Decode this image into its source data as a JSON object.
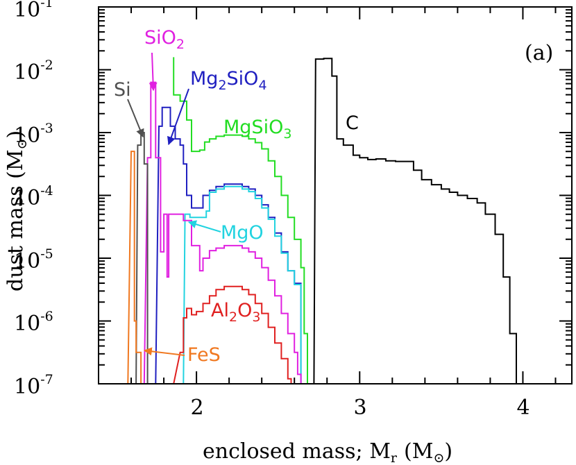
{
  "chart_data": {
    "type": "line",
    "panel_label": "(a)",
    "xlabel": "enclosed mass; M",
    "xlabel_sub": "r",
    "xlabel_unit": "(M",
    "xlabel_unit_close": ")",
    "ylabel": "dust mass (M",
    "ylabel_close": ")",
    "xlim": [
      1.4,
      4.3
    ],
    "ylim_log10": [
      -7,
      -1
    ],
    "yscale": "log",
    "x_ticks": [
      {
        "value": 2,
        "label": "2"
      },
      {
        "value": 3,
        "label": "3"
      },
      {
        "value": 4,
        "label": "4"
      }
    ],
    "y_ticks": [
      {
        "exp": -1,
        "base": "10",
        "exponent": "-1"
      },
      {
        "exp": -2,
        "base": "10",
        "exponent": "-2"
      },
      {
        "exp": -3,
        "base": "10",
        "exponent": "-3"
      },
      {
        "exp": -4,
        "base": "10",
        "exponent": "-4"
      },
      {
        "exp": -5,
        "base": "10",
        "exponent": "-5"
      },
      {
        "exp": -6,
        "base": "10",
        "exponent": "-6"
      },
      {
        "exp": -7,
        "base": "10",
        "exponent": "-7"
      }
    ],
    "series": [
      {
        "name": "C",
        "color": "#000000",
        "points": [
          [
            2.72,
            -7
          ],
          [
            2.73,
            -1.83
          ],
          [
            2.78,
            -1.83
          ],
          [
            2.78,
            -1.82
          ],
          [
            2.83,
            -1.82
          ],
          [
            2.83,
            -2.1
          ],
          [
            2.86,
            -2.1
          ],
          [
            2.86,
            -3.1
          ],
          [
            2.9,
            -3.1
          ],
          [
            2.9,
            -3.2
          ],
          [
            2.96,
            -3.2
          ],
          [
            2.96,
            -3.36
          ],
          [
            3.0,
            -3.36
          ],
          [
            3.0,
            -3.4
          ],
          [
            3.05,
            -3.4
          ],
          [
            3.05,
            -3.43
          ],
          [
            3.1,
            -3.43
          ],
          [
            3.1,
            -3.42
          ],
          [
            3.16,
            -3.42
          ],
          [
            3.16,
            -3.45
          ],
          [
            3.22,
            -3.45
          ],
          [
            3.22,
            -3.46
          ],
          [
            3.33,
            -3.46
          ],
          [
            3.33,
            -3.6
          ],
          [
            3.38,
            -3.6
          ],
          [
            3.38,
            -3.75
          ],
          [
            3.44,
            -3.75
          ],
          [
            3.44,
            -3.83
          ],
          [
            3.5,
            -3.83
          ],
          [
            3.5,
            -3.9
          ],
          [
            3.55,
            -3.9
          ],
          [
            3.55,
            -3.95
          ],
          [
            3.6,
            -3.95
          ],
          [
            3.6,
            -4.0
          ],
          [
            3.66,
            -4.0
          ],
          [
            3.66,
            -4.05
          ],
          [
            3.72,
            -4.05
          ],
          [
            3.72,
            -4.12
          ],
          [
            3.77,
            -4.12
          ],
          [
            3.77,
            -4.3
          ],
          [
            3.83,
            -4.3
          ],
          [
            3.83,
            -4.62
          ],
          [
            3.88,
            -4.62
          ],
          [
            3.88,
            -5.3
          ],
          [
            3.92,
            -5.3
          ],
          [
            3.92,
            -6.2
          ],
          [
            3.96,
            -6.2
          ],
          [
            3.96,
            -7
          ]
        ]
      },
      {
        "name": "MgSiO3",
        "label_base": "MgSiO",
        "label_sub": "3",
        "color": "#22dd22",
        "points": [
          [
            1.86,
            -1.8
          ],
          [
            1.86,
            -2.4
          ],
          [
            1.9,
            -2.4
          ],
          [
            1.9,
            -2.5
          ],
          [
            1.94,
            -2.5
          ],
          [
            1.94,
            -2.8
          ],
          [
            1.97,
            -2.8
          ],
          [
            1.97,
            -3.3
          ],
          [
            2.02,
            -3.3
          ],
          [
            2.02,
            -3.28
          ],
          [
            2.05,
            -3.28
          ],
          [
            2.05,
            -3.15
          ],
          [
            2.08,
            -3.15
          ],
          [
            2.08,
            -3.1
          ],
          [
            2.12,
            -3.1
          ],
          [
            2.12,
            -3.06
          ],
          [
            2.17,
            -3.06
          ],
          [
            2.17,
            -3.04
          ],
          [
            2.28,
            -3.04
          ],
          [
            2.28,
            -3.06
          ],
          [
            2.32,
            -3.06
          ],
          [
            2.32,
            -3.1
          ],
          [
            2.36,
            -3.1
          ],
          [
            2.36,
            -3.16
          ],
          [
            2.4,
            -3.16
          ],
          [
            2.4,
            -3.26
          ],
          [
            2.44,
            -3.26
          ],
          [
            2.44,
            -3.45
          ],
          [
            2.48,
            -3.45
          ],
          [
            2.48,
            -3.7
          ],
          [
            2.52,
            -3.7
          ],
          [
            2.52,
            -4.0
          ],
          [
            2.56,
            -4.0
          ],
          [
            2.56,
            -4.35
          ],
          [
            2.6,
            -4.35
          ],
          [
            2.6,
            -4.7
          ],
          [
            2.64,
            -4.7
          ],
          [
            2.64,
            -5.15
          ],
          [
            2.66,
            -5.15
          ],
          [
            2.66,
            -6.2
          ],
          [
            2.68,
            -6.2
          ],
          [
            2.68,
            -7
          ]
        ]
      },
      {
        "name": "Mg2SiO4",
        "label_base": "Mg",
        "label_sub1": "2",
        "label_mid": "SiO",
        "label_sub2": "4",
        "color": "#1f1fc0",
        "points": [
          [
            1.75,
            -7
          ],
          [
            1.77,
            -2.9
          ],
          [
            1.79,
            -2.9
          ],
          [
            1.79,
            -2.6
          ],
          [
            1.84,
            -2.6
          ],
          [
            1.84,
            -2.9
          ],
          [
            1.87,
            -2.9
          ],
          [
            1.87,
            -3.1
          ],
          [
            1.9,
            -3.1
          ],
          [
            1.9,
            -3.2
          ],
          [
            1.92,
            -3.2
          ],
          [
            1.92,
            -3.5
          ],
          [
            1.94,
            -3.5
          ],
          [
            1.94,
            -4.0
          ],
          [
            1.97,
            -4.0
          ],
          [
            1.97,
            -4.2
          ],
          [
            2.04,
            -4.2
          ],
          [
            2.04,
            -4.0
          ],
          [
            2.08,
            -4.0
          ],
          [
            2.08,
            -3.92
          ],
          [
            2.12,
            -3.92
          ],
          [
            2.12,
            -3.86
          ],
          [
            2.17,
            -3.86
          ],
          [
            2.17,
            -3.82
          ],
          [
            2.28,
            -3.82
          ],
          [
            2.28,
            -3.86
          ],
          [
            2.32,
            -3.86
          ],
          [
            2.32,
            -3.9
          ],
          [
            2.36,
            -3.9
          ],
          [
            2.36,
            -4.0
          ],
          [
            2.4,
            -4.0
          ],
          [
            2.4,
            -4.15
          ],
          [
            2.44,
            -4.15
          ],
          [
            2.44,
            -4.35
          ],
          [
            2.48,
            -4.35
          ],
          [
            2.48,
            -4.6
          ],
          [
            2.52,
            -4.6
          ],
          [
            2.52,
            -4.9
          ],
          [
            2.56,
            -4.9
          ],
          [
            2.56,
            -5.2
          ],
          [
            2.6,
            -5.2
          ],
          [
            2.6,
            -5.4
          ],
          [
            2.64,
            -5.4
          ],
          [
            2.64,
            -7
          ]
        ]
      },
      {
        "name": "MgO",
        "color": "#22d3e0",
        "points": [
          [
            1.92,
            -7
          ],
          [
            1.93,
            -4.3
          ],
          [
            1.96,
            -4.3
          ],
          [
            1.96,
            -4.35
          ],
          [
            2.06,
            -4.35
          ],
          [
            2.06,
            -4.25
          ],
          [
            2.08,
            -4.25
          ],
          [
            2.08,
            -3.95
          ],
          [
            2.12,
            -3.95
          ],
          [
            2.12,
            -3.9
          ],
          [
            2.17,
            -3.9
          ],
          [
            2.17,
            -3.86
          ],
          [
            2.28,
            -3.86
          ],
          [
            2.28,
            -3.9
          ],
          [
            2.32,
            -3.9
          ],
          [
            2.32,
            -3.94
          ],
          [
            2.36,
            -3.94
          ],
          [
            2.36,
            -4.05
          ],
          [
            2.4,
            -4.05
          ],
          [
            2.4,
            -4.2
          ],
          [
            2.44,
            -4.2
          ],
          [
            2.44,
            -4.38
          ],
          [
            2.48,
            -4.38
          ],
          [
            2.48,
            -4.65
          ],
          [
            2.52,
            -4.65
          ],
          [
            2.52,
            -4.92
          ],
          [
            2.56,
            -4.92
          ],
          [
            2.56,
            -5.2
          ],
          [
            2.6,
            -5.2
          ],
          [
            2.6,
            -5.42
          ],
          [
            2.64,
            -5.42
          ],
          [
            2.64,
            -7
          ]
        ]
      },
      {
        "name": "SiO2",
        "label_base": "SiO",
        "label_sub": "2",
        "color": "#e020e0",
        "points": [
          [
            1.68,
            -7
          ],
          [
            1.7,
            -3.4
          ],
          [
            1.72,
            -3.4
          ],
          [
            1.72,
            -2.2
          ],
          [
            1.75,
            -2.2
          ],
          [
            1.75,
            -3.4
          ],
          [
            1.78,
            -3.4
          ],
          [
            1.78,
            -4.9
          ],
          [
            1.8,
            -4.9
          ],
          [
            1.8,
            -4.3
          ],
          [
            1.82,
            -4.3
          ],
          [
            1.82,
            -5.3
          ],
          [
            1.83,
            -5.3
          ],
          [
            1.83,
            -4.3
          ],
          [
            1.92,
            -4.3
          ],
          [
            1.92,
            -4.4
          ],
          [
            1.97,
            -4.4
          ],
          [
            1.97,
            -4.8
          ],
          [
            2.02,
            -4.8
          ],
          [
            2.02,
            -5.2
          ],
          [
            2.04,
            -5.2
          ],
          [
            2.04,
            -5.0
          ],
          [
            2.08,
            -5.0
          ],
          [
            2.08,
            -4.88
          ],
          [
            2.12,
            -4.88
          ],
          [
            2.12,
            -4.84
          ],
          [
            2.17,
            -4.84
          ],
          [
            2.17,
            -4.8
          ],
          [
            2.28,
            -4.8
          ],
          [
            2.28,
            -4.84
          ],
          [
            2.32,
            -4.84
          ],
          [
            2.32,
            -4.9
          ],
          [
            2.36,
            -4.9
          ],
          [
            2.36,
            -5.0
          ],
          [
            2.4,
            -5.0
          ],
          [
            2.4,
            -5.15
          ],
          [
            2.44,
            -5.15
          ],
          [
            2.44,
            -5.35
          ],
          [
            2.48,
            -5.35
          ],
          [
            2.48,
            -5.6
          ],
          [
            2.52,
            -5.6
          ],
          [
            2.52,
            -5.88
          ],
          [
            2.56,
            -5.88
          ],
          [
            2.56,
            -6.2
          ],
          [
            2.6,
            -6.2
          ],
          [
            2.6,
            -6.5
          ],
          [
            2.62,
            -6.5
          ],
          [
            2.62,
            -6.85
          ],
          [
            2.64,
            -6.85
          ],
          [
            2.64,
            -7
          ]
        ]
      },
      {
        "name": "Al2O3",
        "label_base": "Al",
        "label_sub1": "2",
        "label_mid": "O",
        "label_sub2": "3",
        "color": "#e02020",
        "points": [
          [
            1.86,
            -7
          ],
          [
            1.9,
            -6.5
          ],
          [
            1.92,
            -6.5
          ],
          [
            1.92,
            -5.95
          ],
          [
            1.94,
            -5.95
          ],
          [
            1.94,
            -5.8
          ],
          [
            1.97,
            -5.8
          ],
          [
            1.97,
            -5.9
          ],
          [
            2.0,
            -5.9
          ],
          [
            2.0,
            -5.85
          ],
          [
            2.04,
            -5.85
          ],
          [
            2.04,
            -5.72
          ],
          [
            2.08,
            -5.72
          ],
          [
            2.08,
            -5.6
          ],
          [
            2.12,
            -5.6
          ],
          [
            2.12,
            -5.5
          ],
          [
            2.17,
            -5.5
          ],
          [
            2.17,
            -5.45
          ],
          [
            2.28,
            -5.45
          ],
          [
            2.28,
            -5.5
          ],
          [
            2.32,
            -5.5
          ],
          [
            2.32,
            -5.58
          ],
          [
            2.36,
            -5.58
          ],
          [
            2.36,
            -5.72
          ],
          [
            2.4,
            -5.72
          ],
          [
            2.4,
            -5.88
          ],
          [
            2.44,
            -5.88
          ],
          [
            2.44,
            -6.1
          ],
          [
            2.48,
            -6.1
          ],
          [
            2.48,
            -6.35
          ],
          [
            2.52,
            -6.35
          ],
          [
            2.52,
            -6.6
          ],
          [
            2.56,
            -6.6
          ],
          [
            2.56,
            -6.92
          ],
          [
            2.58,
            -6.92
          ],
          [
            2.58,
            -7
          ]
        ]
      },
      {
        "name": "Si",
        "color": "#505050",
        "points": [
          [
            1.63,
            -7
          ],
          [
            1.64,
            -3.2
          ],
          [
            1.66,
            -3.2
          ],
          [
            1.66,
            -3.0
          ],
          [
            1.68,
            -3.0
          ],
          [
            1.68,
            -3.5
          ],
          [
            1.7,
            -3.5
          ],
          [
            1.7,
            -7
          ]
        ]
      },
      {
        "name": "FeS",
        "color": "#f07820",
        "points": [
          [
            1.58,
            -7
          ],
          [
            1.6,
            -3.3
          ],
          [
            1.62,
            -3.3
          ],
          [
            1.62,
            -6.0
          ],
          [
            1.63,
            -6.0
          ],
          [
            1.63,
            -6.5
          ],
          [
            1.66,
            -6.5
          ],
          [
            1.66,
            -7
          ]
        ]
      }
    ],
    "annotations": [
      {
        "text": "C",
        "color": "#000000"
      }
    ]
  }
}
